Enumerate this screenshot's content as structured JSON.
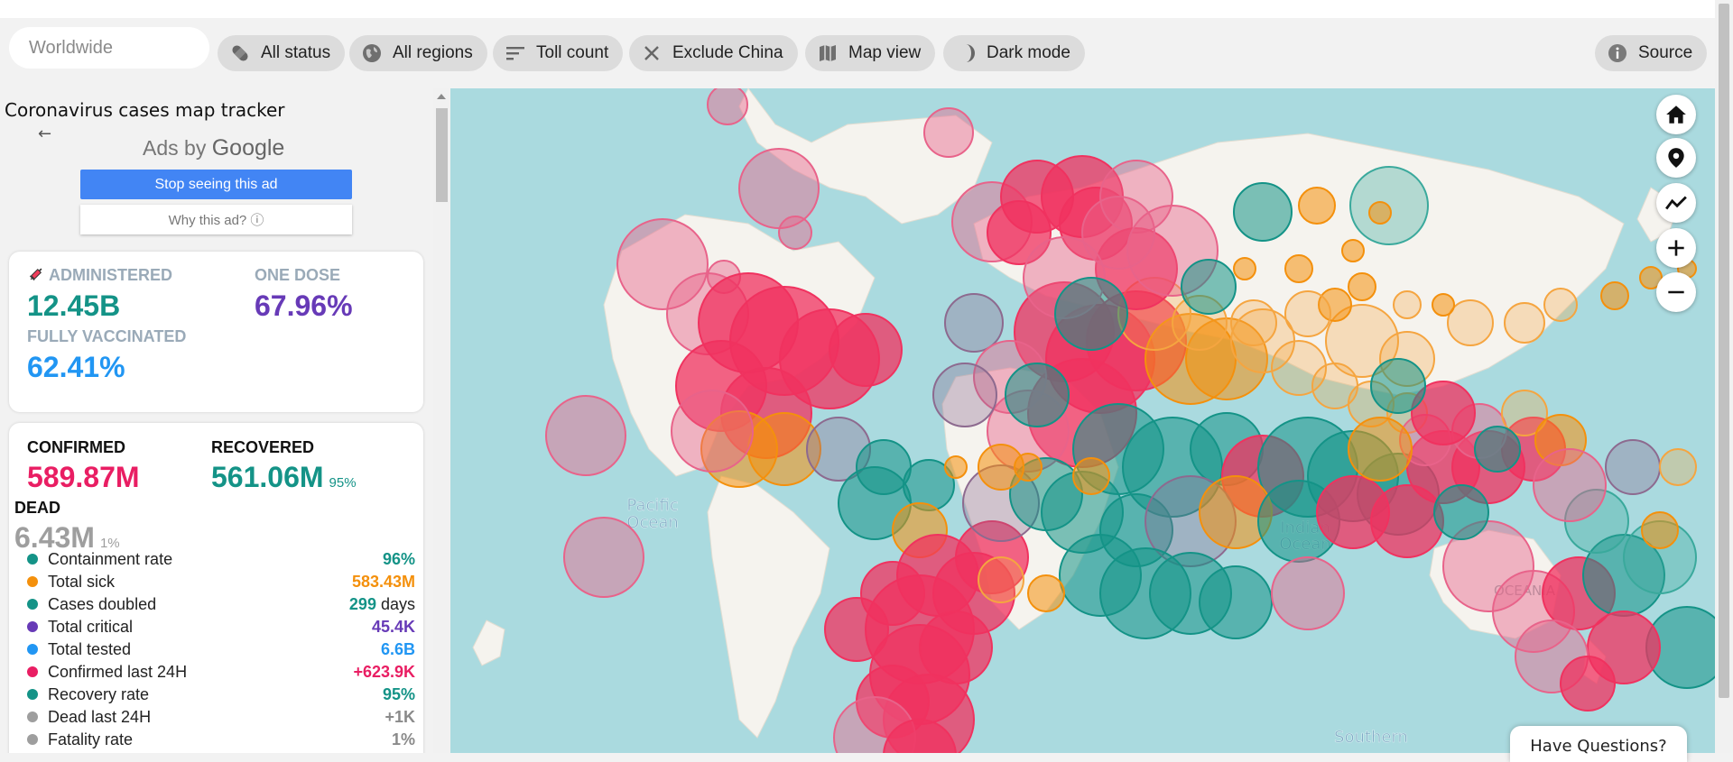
{
  "toolbar": {
    "search_placeholder": "Worldwide",
    "chips": {
      "status": "All status",
      "regions": "All regions",
      "toll": "Toll count",
      "exclude": "Exclude China",
      "mapview": "Map view",
      "dark": "Dark mode",
      "source": "Source"
    }
  },
  "sidebar": {
    "title": "Coronavirus cases map tracker",
    "ad": {
      "ads_by": "Ads by",
      "google": "Google",
      "stop_label": "Stop seeing this ad",
      "why_label": "Why this ad? ⓘ"
    },
    "vaccination": {
      "administered_label": "ADMINISTERED",
      "administered_value": "12.45B",
      "one_dose_label": "ONE DOSE",
      "one_dose_value": "67.96%",
      "fully_label": "FULLY VACCINATED",
      "fully_value": "62.41%"
    },
    "summary": {
      "confirmed_label": "CONFIRMED",
      "confirmed_value": "589.87M",
      "recovered_label": "RECOVERED",
      "recovered_value": "561.06M",
      "recovered_pct": "95%",
      "dead_label": "DEAD",
      "dead_value": "6.43M",
      "dead_pct": "1%"
    },
    "stats": [
      {
        "name": "Containment rate",
        "value": "96%",
        "unit": "",
        "color": "#149387"
      },
      {
        "name": "Total sick",
        "value": "583.43M",
        "unit": "",
        "color": "#f4900c"
      },
      {
        "name": "Cases doubled",
        "value": "299",
        "unit": "days",
        "color": "#149387"
      },
      {
        "name": "Total critical",
        "value": "45.4K",
        "unit": "",
        "color": "#673ab7"
      },
      {
        "name": "Total tested",
        "value": "6.6B",
        "unit": "",
        "color": "#2196f3"
      },
      {
        "name": "Confirmed last 24H",
        "value": "+623.9K",
        "unit": "",
        "color": "#e91e63"
      },
      {
        "name": "Recovery rate",
        "value": "95%",
        "unit": "",
        "color": "#149387"
      },
      {
        "name": "Dead last 24H",
        "value": "+1K",
        "unit": "",
        "color": "#9e9e9e"
      },
      {
        "name": "Fatality rate",
        "value": "1%",
        "unit": "",
        "color": "#9e9e9e"
      }
    ]
  },
  "map": {
    "labels": {
      "pacific": "Pacific Ocean",
      "indian": "Indian Ocean",
      "southern": "Southern Ocean",
      "oceania": "OCEANIA"
    },
    "help_label": "Have Questions?"
  },
  "colors": {
    "confirmed": "#f0325f",
    "recovered": "#149387",
    "sick": "#f4900c",
    "critical": "#673ab7",
    "tested": "#2196f3",
    "dead": "#9e9e9e"
  }
}
